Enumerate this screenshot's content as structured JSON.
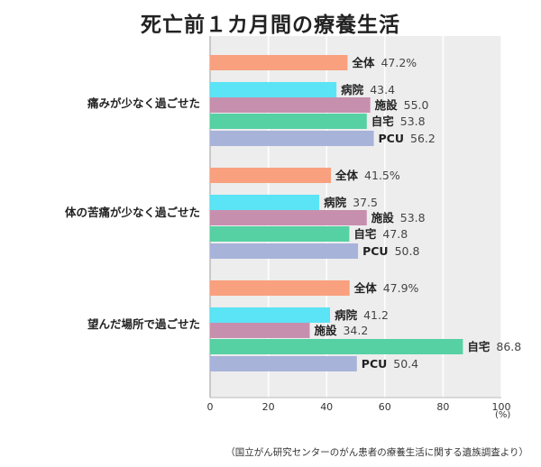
{
  "chart_data": {
    "type": "bar",
    "orientation": "horizontal",
    "title": "死亡前１カ月間の療養生活",
    "categories": [
      "痛みが少なく過ごせた",
      "体の苦痛が少なく過ごせた",
      "望んだ場所で過ごせた"
    ],
    "series": [
      {
        "name": "全体",
        "color": "#F9A07E",
        "values": [
          47.2,
          41.5,
          47.9
        ],
        "labels": [
          "47.2%",
          "41.5%",
          "47.9%"
        ]
      },
      {
        "name": "病院",
        "color": "#5BE3F6",
        "values": [
          43.4,
          37.5,
          41.2
        ],
        "labels": [
          "43.4",
          "37.5",
          "41.2"
        ]
      },
      {
        "name": "施設",
        "color": "#C78FAE",
        "values": [
          55.0,
          53.8,
          34.2
        ],
        "labels": [
          "55.0",
          "53.8",
          "34.2"
        ]
      },
      {
        "name": "自宅",
        "color": "#55D1A3",
        "values": [
          53.8,
          47.8,
          86.8
        ],
        "labels": [
          "53.8",
          "47.8",
          "86.8"
        ]
      },
      {
        "name": "PCU",
        "color": "#A8B3DA",
        "values": [
          56.2,
          50.8,
          50.4
        ],
        "labels": [
          "56.2",
          "50.8",
          "50.4"
        ]
      }
    ],
    "xlim": [
      0,
      100
    ],
    "xticks": [
      "0",
      "20",
      "40",
      "60",
      "80",
      "100"
    ],
    "xlabel": "(%)",
    "grid": true,
    "plot_background": "#EDEDED"
  },
  "source_note": "（国立がん研究センターのがん患者の療養生活に関する遺族調査より）"
}
